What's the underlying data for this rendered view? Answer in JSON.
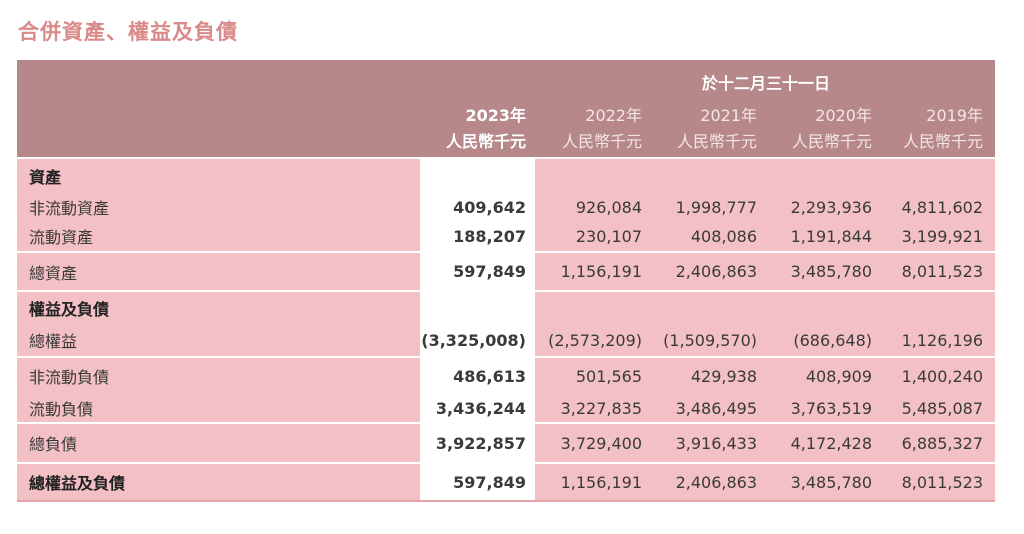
{
  "title": "合併資產、權益及負債",
  "header": {
    "period": "於十二月三十一日",
    "years": [
      "2023年",
      "2022年",
      "2021年",
      "2020年",
      "2019年"
    ],
    "unit": "人民幣千元"
  },
  "assets": {
    "heading": "資產",
    "non_current": {
      "label": "非流動資產",
      "values": [
        "409,642",
        "926,084",
        "1,998,777",
        "2,293,936",
        "4,811,602"
      ]
    },
    "current": {
      "label": "流動資產",
      "values": [
        "188,207",
        "230,107",
        "408,086",
        "1,191,844",
        "3,199,921"
      ]
    },
    "total": {
      "label": "總資產",
      "values": [
        "597,849",
        "1,156,191",
        "2,406,863",
        "3,485,780",
        "8,011,523"
      ]
    }
  },
  "equity_liabilities": {
    "heading": "權益及負債",
    "total_equity": {
      "label": "總權益",
      "values": [
        "(3,325,008)",
        "(2,573,209)",
        "(1,509,570)",
        "(686,648)",
        "1,126,196"
      ]
    },
    "non_current": {
      "label": "非流動負債",
      "values": [
        "486,613",
        "501,565",
        "429,938",
        "408,909",
        "1,400,240"
      ]
    },
    "current": {
      "label": "流動負債",
      "values": [
        "3,436,244",
        "3,227,835",
        "3,486,495",
        "3,763,519",
        "5,485,087"
      ]
    },
    "total_liabilities": {
      "label": "總負債",
      "values": [
        "3,922,857",
        "3,729,400",
        "3,916,433",
        "4,172,428",
        "6,885,327"
      ]
    },
    "grand_total": {
      "label": "總權益及負債",
      "values": [
        "597,849",
        "1,156,191",
        "2,406,863",
        "3,485,780",
        "8,011,523"
      ]
    }
  },
  "colors": {
    "title": "#d98a8a",
    "header_bg": "#b6888a",
    "row_bg": "#f3c0c5"
  }
}
